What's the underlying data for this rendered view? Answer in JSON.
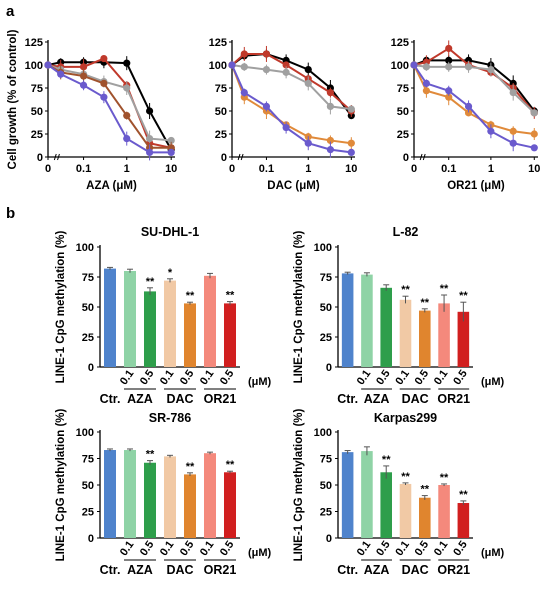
{
  "panels": {
    "a": "a",
    "b": "b"
  },
  "chart_data": [
    {
      "type": "line",
      "ylabel": "Cell growth (% of control)",
      "xlabel": "AZA (μM)",
      "x_ticks": [
        "0",
        "0.1",
        "1",
        "10"
      ],
      "y_ticks": [
        "0",
        "25",
        "50",
        "75",
        "100",
        "125"
      ],
      "ylim": [
        0,
        125
      ],
      "x_scale": "log",
      "x": [
        0,
        0.03,
        0.1,
        0.3,
        1,
        3,
        10
      ],
      "series": [
        {
          "color": "#000000",
          "values": [
            100,
            103,
            103,
            103,
            102,
            50,
            8
          ]
        },
        {
          "color": "#c0392b",
          "values": [
            100,
            98,
            98,
            107,
            78,
            15,
            10
          ]
        },
        {
          "color": "#a0a0a0",
          "values": [
            100,
            95,
            90,
            82,
            75,
            20,
            18
          ]
        },
        {
          "color": "#a0522d",
          "values": [
            100,
            92,
            88,
            80,
            45,
            10,
            10
          ]
        },
        {
          "color": "#6a5acd",
          "values": [
            100,
            90,
            78,
            65,
            20,
            5,
            5
          ]
        }
      ]
    },
    {
      "type": "line",
      "ylabel": "",
      "xlabel": "DAC (μM)",
      "x_ticks": [
        "0",
        "0.1",
        "1",
        "10"
      ],
      "y_ticks": [
        "0",
        "25",
        "50",
        "75",
        "100",
        "125"
      ],
      "ylim": [
        0,
        125
      ],
      "x_scale": "log",
      "x": [
        0,
        0.03,
        0.1,
        0.3,
        1,
        3,
        10
      ],
      "series": [
        {
          "color": "#000000",
          "values": [
            100,
            110,
            112,
            105,
            95,
            75,
            45
          ]
        },
        {
          "color": "#c0392b",
          "values": [
            100,
            112,
            112,
            100,
            85,
            70,
            50
          ]
        },
        {
          "color": "#a0a0a0",
          "values": [
            100,
            98,
            95,
            92,
            80,
            55,
            52
          ]
        },
        {
          "color": "#e08a3a",
          "values": [
            100,
            65,
            50,
            35,
            22,
            18,
            15
          ]
        },
        {
          "color": "#6a5acd",
          "values": [
            100,
            70,
            55,
            32,
            15,
            8,
            5
          ]
        }
      ]
    },
    {
      "type": "line",
      "ylabel": "",
      "xlabel": "OR21 (μM)",
      "x_ticks": [
        "0",
        "0.1",
        "1",
        "10"
      ],
      "y_ticks": [
        "0",
        "25",
        "50",
        "75",
        "100",
        "125"
      ],
      "ylim": [
        0,
        125
      ],
      "x_scale": "log",
      "x": [
        0,
        0.03,
        0.1,
        0.3,
        1,
        3,
        10
      ],
      "series": [
        {
          "color": "#000000",
          "values": [
            100,
            105,
            105,
            105,
            100,
            80,
            50
          ]
        },
        {
          "color": "#c0392b",
          "values": [
            100,
            103,
            118,
            100,
            92,
            75,
            48
          ]
        },
        {
          "color": "#a0a0a0",
          "values": [
            100,
            98,
            98,
            98,
            95,
            70,
            48
          ]
        },
        {
          "color": "#e08a3a",
          "values": [
            100,
            72,
            65,
            48,
            35,
            28,
            25
          ]
        },
        {
          "color": "#6a5acd",
          "values": [
            100,
            80,
            72,
            55,
            28,
            15,
            10
          ]
        }
      ]
    },
    {
      "type": "bar",
      "title": "SU-DHL-1",
      "ylabel": "LINE-1 CpG methylation (%)",
      "y_ticks": [
        "0",
        "25",
        "50",
        "75",
        "100"
      ],
      "ylim": [
        0,
        100
      ],
      "conc_labels": [
        "0.1",
        "0.5",
        "0.1",
        "0.5",
        "0.1",
        "0.5"
      ],
      "group_labels": [
        "Ctr.",
        "AZA",
        "DAC",
        "OR21"
      ],
      "unit": "(μM)",
      "colors": [
        "#4f83cc",
        "#8fd3a6",
        "#2e9e4b",
        "#f1c9a5",
        "#e0852e",
        "#f4897c",
        "#d11f1f"
      ],
      "values": [
        82,
        80,
        63,
        72,
        53,
        76,
        53
      ],
      "errors": [
        1,
        1.5,
        3,
        1.5,
        1,
        2,
        1.5
      ],
      "significance": [
        "",
        "",
        "**",
        "*",
        "**",
        "",
        "**"
      ]
    },
    {
      "type": "bar",
      "title": "L-82",
      "ylabel": "LINE-1 CpG methylation (%)",
      "y_ticks": [
        "0",
        "25",
        "50",
        "75",
        "100"
      ],
      "ylim": [
        0,
        100
      ],
      "conc_labels": [
        "0.1",
        "0.5",
        "0.1",
        "0.5",
        "0.1",
        "0.5"
      ],
      "group_labels": [
        "Ctr.",
        "AZA",
        "DAC",
        "OR21"
      ],
      "unit": "(μM)",
      "colors": [
        "#4f83cc",
        "#8fd3a6",
        "#2e9e4b",
        "#f1c9a5",
        "#e0852e",
        "#f4897c",
        "#d11f1f"
      ],
      "values": [
        78,
        77,
        66,
        56,
        47,
        53,
        46
      ],
      "errors": [
        1,
        1.5,
        2.5,
        3,
        1.5,
        7,
        8
      ],
      "significance": [
        "",
        "",
        "",
        "**",
        "**",
        "**",
        "**"
      ]
    },
    {
      "type": "bar",
      "title": "SR-786",
      "ylabel": "LINE-1 CpG methylation (%)",
      "y_ticks": [
        "0",
        "25",
        "50",
        "75",
        "100"
      ],
      "ylim": [
        0,
        100
      ],
      "conc_labels": [
        "0.1",
        "0.5",
        "0.1",
        "0.5",
        "0.1",
        "0.5"
      ],
      "group_labels": [
        "Ctr.",
        "AZA",
        "DAC",
        "OR21"
      ],
      "unit": "(μM)",
      "colors": [
        "#4f83cc",
        "#8fd3a6",
        "#2e9e4b",
        "#f1c9a5",
        "#e0852e",
        "#f4897c",
        "#d11f1f"
      ],
      "values": [
        83,
        83,
        71,
        77,
        60,
        80,
        62
      ],
      "errors": [
        1,
        1,
        2,
        1,
        1.5,
        1,
        1
      ],
      "significance": [
        "",
        "",
        "**",
        "",
        "**",
        "",
        "**"
      ]
    },
    {
      "type": "bar",
      "title": "Karpas299",
      "ylabel": "LINE-1 CpG methylation (%)",
      "y_ticks": [
        "0",
        "25",
        "50",
        "75",
        "100"
      ],
      "ylim": [
        0,
        100
      ],
      "conc_labels": [
        "0.1",
        "0.5",
        "0.1",
        "0.5",
        "0.1",
        "0.5"
      ],
      "group_labels": [
        "Ctr.",
        "AZA",
        "DAC",
        "OR21"
      ],
      "unit": "(μM)",
      "colors": [
        "#4f83cc",
        "#8fd3a6",
        "#2e9e4b",
        "#f1c9a5",
        "#e0852e",
        "#f4897c",
        "#d11f1f"
      ],
      "values": [
        81,
        82,
        62,
        51,
        38,
        50,
        33
      ],
      "errors": [
        1.5,
        4,
        6,
        1,
        2,
        1,
        2
      ],
      "significance": [
        "",
        "",
        "**",
        "**",
        "**",
        "**",
        "**"
      ]
    }
  ]
}
